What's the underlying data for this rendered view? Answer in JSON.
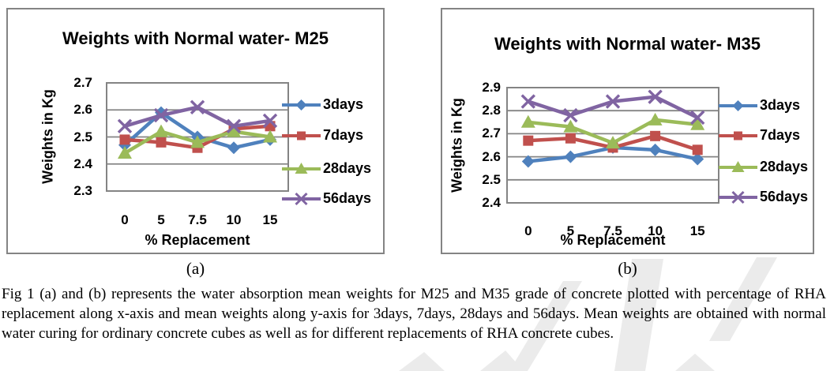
{
  "caption": "Fig 1 (a) and (b) represents the water absorption mean weights for M25 and M35 grade of concrete plotted with percentage of RHA replacement along x-axis and mean weights along y-axis for 3days, 7days, 28days and 56days. Mean weights are obtained with normal water curing for ordinary concrete cubes as well as for different replacements of RHA concrete cubes.",
  "style": {
    "axis_color": "#848484",
    "text_color": "#000000",
    "watermark_color": "#dedede"
  },
  "chart_data": [
    {
      "type": "line",
      "title": "Weights with Normal water- M25",
      "panel_label": "(a)",
      "xlabel": "% Replacement",
      "ylabel": "Weights in Kg",
      "categories": [
        "0",
        "5",
        "7.5",
        "10",
        "15"
      ],
      "yticks": [
        "2.7",
        "2.6",
        "2.5",
        "2.4",
        "2.3"
      ],
      "ylim": [
        2.3,
        2.7
      ],
      "grid": true,
      "legend_position": "right",
      "series": [
        {
          "name": "3days",
          "color": "#4F81BD",
          "marker": "diamond",
          "values": [
            2.47,
            2.59,
            2.5,
            2.46,
            2.49
          ]
        },
        {
          "name": "7days",
          "color": "#C0504D",
          "marker": "square",
          "values": [
            2.49,
            2.48,
            2.46,
            2.53,
            2.54
          ]
        },
        {
          "name": "28days",
          "color": "#9BBB59",
          "marker": "triangle",
          "values": [
            2.44,
            2.52,
            2.48,
            2.52,
            2.5
          ]
        },
        {
          "name": "56days",
          "color": "#8064A2",
          "marker": "x",
          "values": [
            2.54,
            2.58,
            2.61,
            2.54,
            2.56
          ]
        }
      ]
    },
    {
      "type": "line",
      "title": "Weights with Normal water- M35",
      "panel_label": "(b)",
      "xlabel": "% Replacement",
      "ylabel": "Weights in Kg",
      "categories": [
        "0",
        "5",
        "7.5",
        "10",
        "15"
      ],
      "yticks": [
        "2.9",
        "2.8",
        "2.7",
        "2.6",
        "2.5",
        "2.4"
      ],
      "ylim": [
        2.4,
        2.9
      ],
      "grid": true,
      "legend_position": "right",
      "series": [
        {
          "name": "3days",
          "color": "#4F81BD",
          "marker": "diamond",
          "values": [
            2.58,
            2.6,
            2.64,
            2.63,
            2.59
          ]
        },
        {
          "name": "7days",
          "color": "#C0504D",
          "marker": "square",
          "values": [
            2.67,
            2.68,
            2.64,
            2.69,
            2.63
          ]
        },
        {
          "name": "28days",
          "color": "#9BBB59",
          "marker": "triangle",
          "values": [
            2.75,
            2.73,
            2.66,
            2.76,
            2.74
          ]
        },
        {
          "name": "56days",
          "color": "#8064A2",
          "marker": "x",
          "values": [
            2.84,
            2.78,
            2.84,
            2.86,
            2.77
          ]
        }
      ]
    }
  ]
}
